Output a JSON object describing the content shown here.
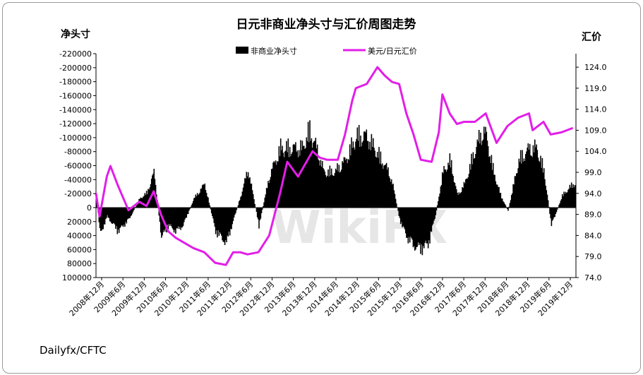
{
  "chart_data": {
    "type": "bar",
    "title": "日元非商业净头寸与汇价周图走势",
    "source": "Dailyfx/CFTC",
    "watermark": "WikiFX",
    "y_left_label": "净头寸",
    "y_right_label": "汇价",
    "y_left_ticks": [
      "-220000",
      "-200000",
      "-180000",
      "-160000",
      "-140000",
      "-120000",
      "-100000",
      "-80000",
      "-60000",
      "-40000",
      "-20000",
      "0",
      "20000",
      "40000",
      "60000",
      "80000",
      "100000"
    ],
    "y_left_values": [
      -220000,
      -200000,
      -180000,
      -160000,
      -140000,
      -120000,
      -100000,
      -80000,
      -60000,
      -40000,
      -20000,
      0,
      20000,
      40000,
      60000,
      80000,
      100000
    ],
    "y_right_ticks": [
      "124.0",
      "119.0",
      "114.0",
      "109.0",
      "104.0",
      "99.0",
      "94.0",
      "89.0",
      "84.0",
      "79.0",
      "74.0"
    ],
    "y_right_values": [
      124,
      119,
      114,
      109,
      104,
      99,
      94,
      89,
      84,
      79,
      74
    ],
    "y_left_range": [
      -220000,
      100000
    ],
    "y_right_range": [
      74.0,
      127.2
    ],
    "x_ticks": [
      "2008年12月",
      "2009年6月",
      "2009年12月",
      "2010年6月",
      "2010年12月",
      "2011年6月",
      "2011年12月",
      "2012年6月",
      "2012年12月",
      "2013年6月",
      "2013年12月",
      "2014年6月",
      "2014年12月",
      "2015年6月",
      "2015年12月",
      "2016年6月",
      "2016年12月",
      "2017年6月",
      "2017年12月",
      "2018年6月",
      "2018年12月",
      "2019年6月",
      "2019年12月"
    ],
    "x_range": [
      "2008-12",
      "2020-01"
    ],
    "series": [
      {
        "name": "非商业净头寸",
        "type": "bar",
        "color": "#000000",
        "x": [
          "2008-12",
          "2009-01",
          "2009-03",
          "2009-06",
          "2009-09",
          "2009-12",
          "2010-02",
          "2010-04",
          "2010-06",
          "2010-08",
          "2010-10",
          "2010-12",
          "2011-03",
          "2011-06",
          "2011-09",
          "2011-12",
          "2012-02",
          "2012-04",
          "2012-06",
          "2012-09",
          "2012-12",
          "2013-03",
          "2013-06",
          "2013-09",
          "2013-11",
          "2014-01",
          "2014-03",
          "2014-06",
          "2014-09",
          "2014-12",
          "2015-03",
          "2015-06",
          "2015-09",
          "2015-10",
          "2015-12",
          "2016-02",
          "2016-04",
          "2016-06",
          "2016-08",
          "2016-10",
          "2016-12",
          "2017-02",
          "2017-04",
          "2017-06",
          "2017-09",
          "2017-11",
          "2017-12",
          "2018-02",
          "2018-04",
          "2018-06",
          "2018-09",
          "2018-12",
          "2019-02",
          "2019-04",
          "2019-06",
          "2019-09",
          "2019-12"
        ],
        "values": [
          -20000,
          45000,
          15000,
          40000,
          20000,
          -15000,
          -25000,
          -60000,
          50000,
          30000,
          40000,
          30000,
          -15000,
          -40000,
          40000,
          60000,
          20000,
          -20000,
          -65000,
          30000,
          -55000,
          -100000,
          -100000,
          -100000,
          -130000,
          -100000,
          -60000,
          -60000,
          -80000,
          -120000,
          -120000,
          -90000,
          -60000,
          -40000,
          20000,
          50000,
          65000,
          70000,
          60000,
          10000,
          -60000,
          -80000,
          -20000,
          -40000,
          -100000,
          -130000,
          -120000,
          -60000,
          -20000,
          5000,
          -80000,
          -100000,
          -100000,
          -60000,
          30000,
          -20000,
          -40000
        ]
      },
      {
        "name": "美元/日元汇价",
        "type": "line",
        "color": "#e21ee8",
        "x": [
          "2008-12",
          "2009-01",
          "2009-03",
          "2009-04",
          "2009-06",
          "2009-09",
          "2009-12",
          "2010-02",
          "2010-04",
          "2010-06",
          "2010-08",
          "2010-10",
          "2010-12",
          "2011-03",
          "2011-06",
          "2011-09",
          "2011-12",
          "2012-02",
          "2012-04",
          "2012-06",
          "2012-09",
          "2012-12",
          "2013-03",
          "2013-05",
          "2013-08",
          "2013-12",
          "2014-02",
          "2014-04",
          "2014-07",
          "2014-09",
          "2014-11",
          "2014-12",
          "2015-03",
          "2015-06",
          "2015-08",
          "2015-10",
          "2015-12",
          "2016-02",
          "2016-04",
          "2016-06",
          "2016-09",
          "2016-11",
          "2016-12",
          "2017-02",
          "2017-04",
          "2017-06",
          "2017-09",
          "2017-12",
          "2018-03",
          "2018-06",
          "2018-09",
          "2018-12",
          "2019-01",
          "2019-04",
          "2019-06",
          "2019-09",
          "2019-12"
        ],
        "values": [
          94.0,
          88.5,
          98.0,
          100.5,
          96.0,
          90.0,
          92.0,
          91.0,
          94.5,
          89.0,
          85.0,
          83.5,
          82.5,
          81.0,
          80.0,
          77.5,
          77.0,
          80.0,
          80.0,
          79.5,
          80.0,
          84.0,
          94.0,
          101.5,
          98.0,
          104.0,
          102.5,
          102.0,
          102.0,
          108.0,
          116.0,
          119.0,
          120.0,
          124.0,
          122.0,
          120.5,
          120.0,
          113.0,
          108.0,
          102.0,
          101.5,
          108.5,
          117.5,
          113.0,
          110.5,
          111.0,
          111.0,
          113.0,
          106.0,
          110.0,
          112.0,
          113.0,
          109.0,
          111.0,
          108.0,
          108.5,
          109.5
        ]
      }
    ],
    "legend": {
      "position": "top-center"
    }
  }
}
